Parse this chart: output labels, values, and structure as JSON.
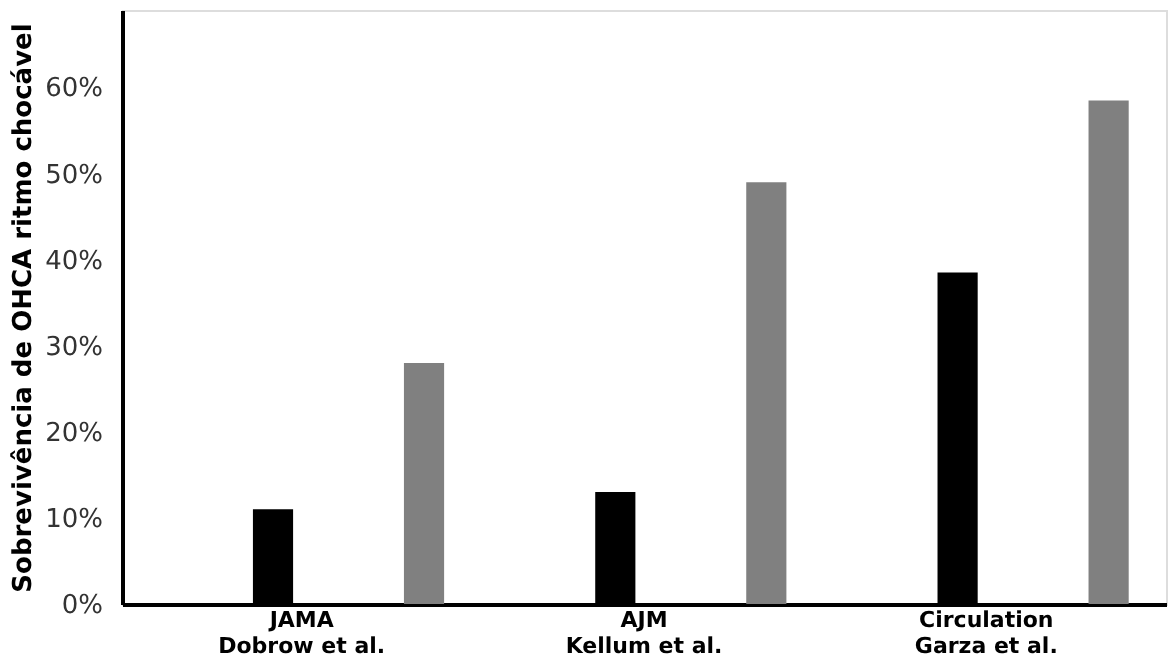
{
  "chart_data": {
    "type": "bar",
    "ylabel": "Sobrevivência de OHCA ritmo chocável",
    "categories": [
      "JAMA\nDobrow et al.",
      "AJM\nKellum et al.",
      "Circulation\nGarza et al."
    ],
    "series": [
      {
        "color": "#000000",
        "values": [
          11,
          13,
          38.5
        ]
      },
      {
        "color": "#808080",
        "values": [
          28,
          49,
          58.5
        ]
      }
    ],
    "ylim": [
      0,
      69
    ],
    "yticks": [
      {
        "value": 0,
        "label": "0%"
      },
      {
        "value": 10,
        "label": "10%"
      },
      {
        "value": 20,
        "label": "20%"
      },
      {
        "value": 30,
        "label": "30%"
      },
      {
        "value": 40,
        "label": "40%"
      },
      {
        "value": 50,
        "label": "50%"
      },
      {
        "value": 60,
        "label": "60%"
      }
    ],
    "grid": false,
    "legend": false
  }
}
